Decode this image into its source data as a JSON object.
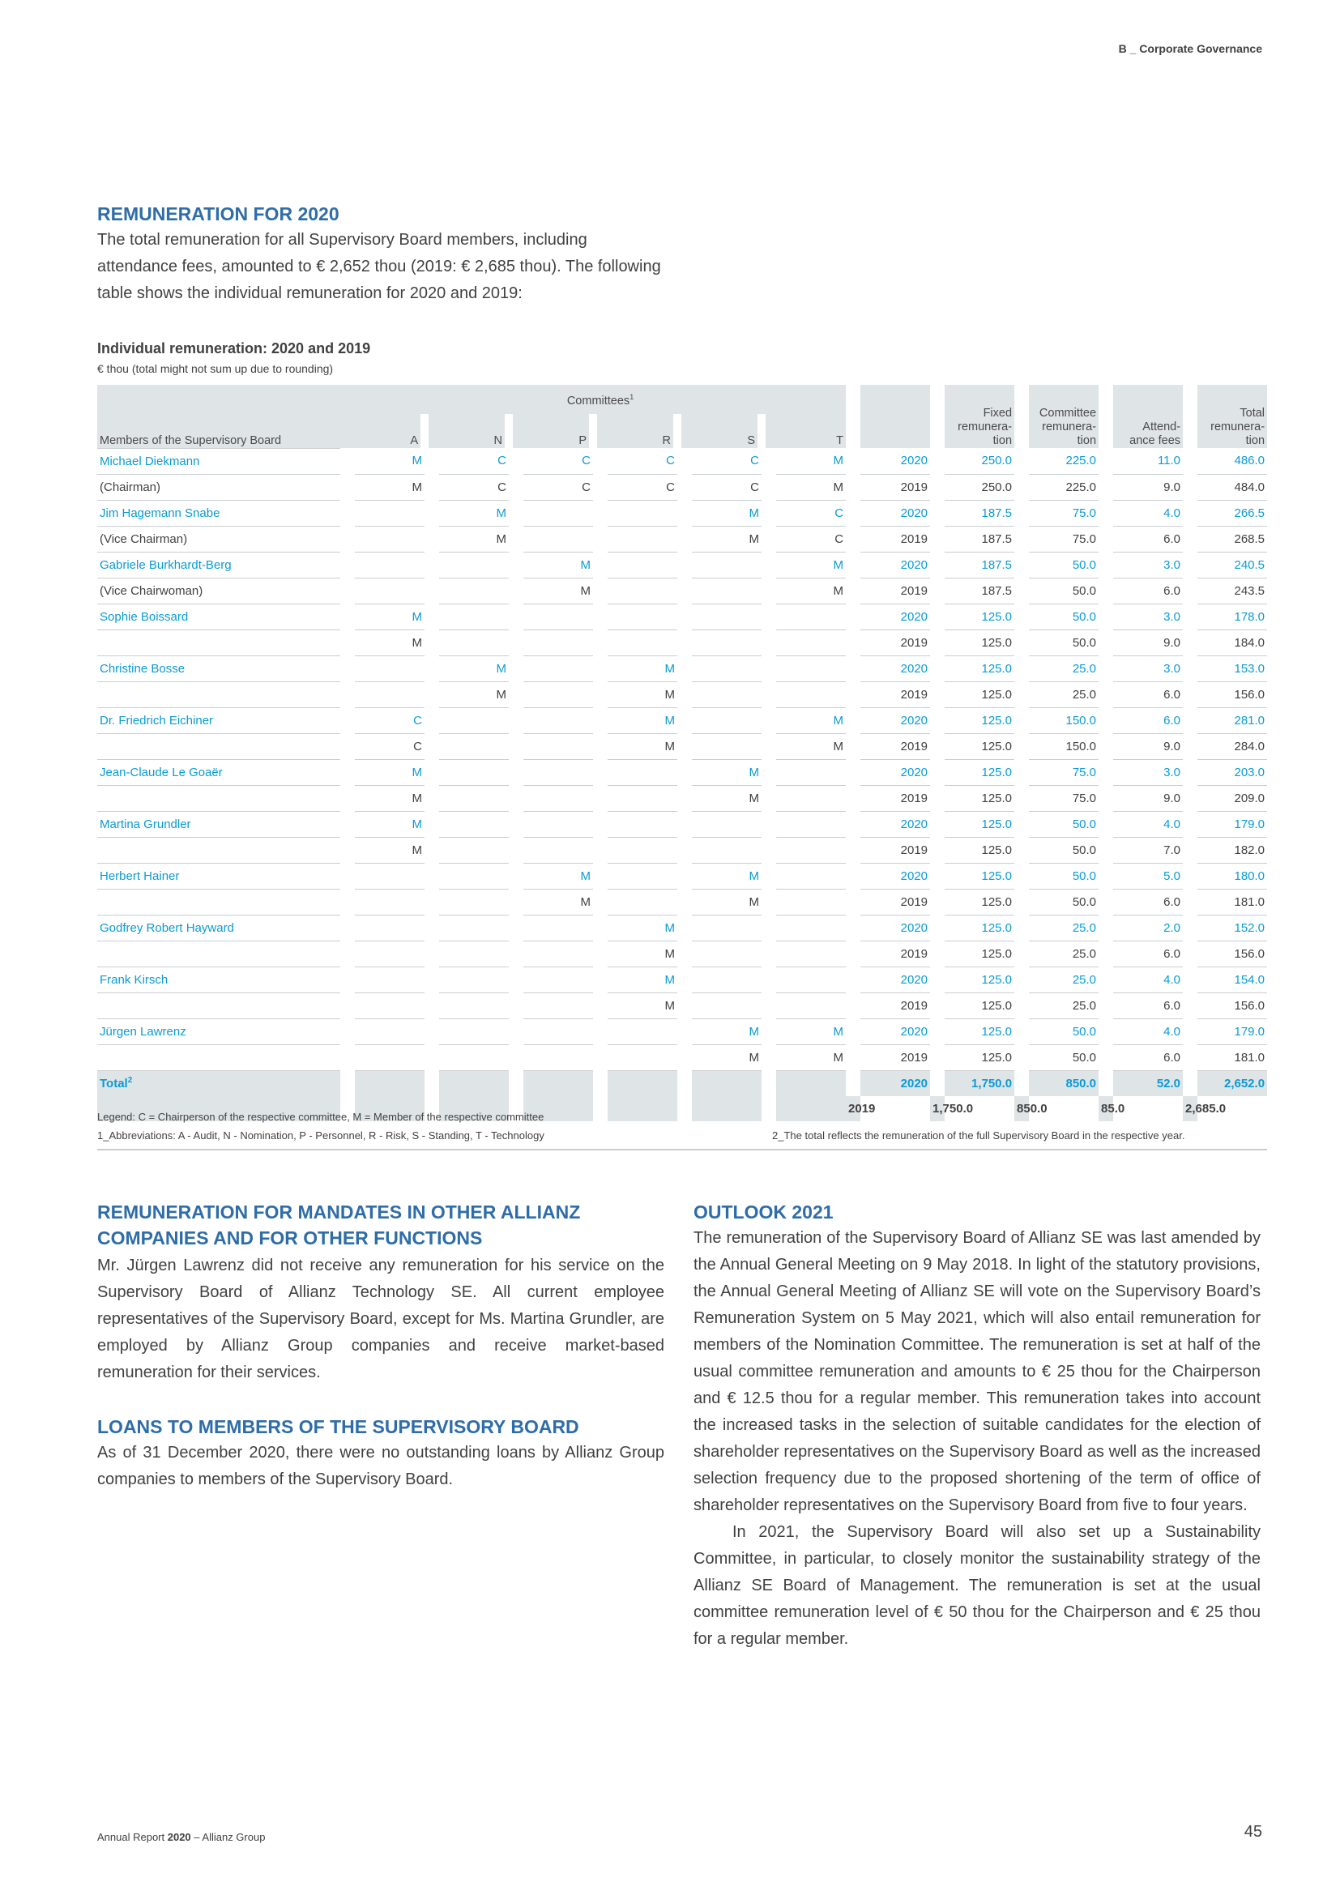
{
  "header": "B _ Corporate Governance",
  "top": {
    "title": "REMUNERATION FOR 2020",
    "para": "The total remuneration for all Supervisory Board members, including attendance fees, amounted to € 2,652 thou (2019: € 2,685 thou). The following table shows the individual remuneration for 2020 and 2019:"
  },
  "table": {
    "title": "Individual remuneration: 2020 and 2019",
    "unit": "€ thou (total might not sum up due to rounding)",
    "head": {
      "committees": "Committees",
      "committees_sup": "1",
      "members": "Members of the Supervisory Board",
      "a": "A",
      "n": "N",
      "p": "P",
      "r": "R",
      "s": "S",
      "t": "T",
      "fixed": "Fixed remunera- tion",
      "committee": "Committee remunera- tion",
      "attend": "Attend- ance fees",
      "total": "Total remunera- tion"
    },
    "rows": [
      {
        "name": "Michael Diekmann",
        "a": "M",
        "n": "C",
        "p": "C",
        "r": "C",
        "s": "C",
        "t": "M",
        "year": "2020",
        "fixed": "250.0",
        "comm": "225.0",
        "att": "11.0",
        "tot": "486.0"
      },
      {
        "name": "(Chairman)",
        "a": "M",
        "n": "C",
        "p": "C",
        "r": "C",
        "s": "C",
        "t": "M",
        "year": "2019",
        "fixed": "250.0",
        "comm": "225.0",
        "att": "9.0",
        "tot": "484.0"
      },
      {
        "name": "Jim Hagemann Snabe",
        "a": "",
        "n": "M",
        "p": "",
        "r": "",
        "s": "M",
        "t": "C",
        "year": "2020",
        "fixed": "187.5",
        "comm": "75.0",
        "att": "4.0",
        "tot": "266.5"
      },
      {
        "name": "(Vice Chairman)",
        "a": "",
        "n": "M",
        "p": "",
        "r": "",
        "s": "M",
        "t": "C",
        "year": "2019",
        "fixed": "187.5",
        "comm": "75.0",
        "att": "6.0",
        "tot": "268.5"
      },
      {
        "name": "Gabriele Burkhardt-Berg",
        "a": "",
        "n": "",
        "p": "M",
        "r": "",
        "s": "",
        "t": "M",
        "year": "2020",
        "fixed": "187.5",
        "comm": "50.0",
        "att": "3.0",
        "tot": "240.5"
      },
      {
        "name": "(Vice Chairwoman)",
        "a": "",
        "n": "",
        "p": "M",
        "r": "",
        "s": "",
        "t": "M",
        "year": "2019",
        "fixed": "187.5",
        "comm": "50.0",
        "att": "6.0",
        "tot": "243.5"
      },
      {
        "name": "Sophie Boissard",
        "a": "M",
        "n": "",
        "p": "",
        "r": "",
        "s": "",
        "t": "",
        "year": "2020",
        "fixed": "125.0",
        "comm": "50.0",
        "att": "3.0",
        "tot": "178.0"
      },
      {
        "name": "",
        "a": "M",
        "n": "",
        "p": "",
        "r": "",
        "s": "",
        "t": "",
        "year": "2019",
        "fixed": "125.0",
        "comm": "50.0",
        "att": "9.0",
        "tot": "184.0"
      },
      {
        "name": "Christine Bosse",
        "a": "",
        "n": "M",
        "p": "",
        "r": "M",
        "s": "",
        "t": "",
        "year": "2020",
        "fixed": "125.0",
        "comm": "25.0",
        "att": "3.0",
        "tot": "153.0"
      },
      {
        "name": "",
        "a": "",
        "n": "M",
        "p": "",
        "r": "M",
        "s": "",
        "t": "",
        "year": "2019",
        "fixed": "125.0",
        "comm": "25.0",
        "att": "6.0",
        "tot": "156.0"
      },
      {
        "name": "Dr. Friedrich Eichiner",
        "a": "C",
        "n": "",
        "p": "",
        "r": "M",
        "s": "",
        "t": "M",
        "year": "2020",
        "fixed": "125.0",
        "comm": "150.0",
        "att": "6.0",
        "tot": "281.0"
      },
      {
        "name": "",
        "a": "C",
        "n": "",
        "p": "",
        "r": "M",
        "s": "",
        "t": "M",
        "year": "2019",
        "fixed": "125.0",
        "comm": "150.0",
        "att": "9.0",
        "tot": "284.0"
      },
      {
        "name": "Jean-Claude Le Goaër",
        "a": "M",
        "n": "",
        "p": "",
        "r": "",
        "s": "M",
        "t": "",
        "year": "2020",
        "fixed": "125.0",
        "comm": "75.0",
        "att": "3.0",
        "tot": "203.0"
      },
      {
        "name": "",
        "a": "M",
        "n": "",
        "p": "",
        "r": "",
        "s": "M",
        "t": "",
        "year": "2019",
        "fixed": "125.0",
        "comm": "75.0",
        "att": "9.0",
        "tot": "209.0"
      },
      {
        "name": "Martina Grundler",
        "a": "M",
        "n": "",
        "p": "",
        "r": "",
        "s": "",
        "t": "",
        "year": "2020",
        "fixed": "125.0",
        "comm": "50.0",
        "att": "4.0",
        "tot": "179.0"
      },
      {
        "name": "",
        "a": "M",
        "n": "",
        "p": "",
        "r": "",
        "s": "",
        "t": "",
        "year": "2019",
        "fixed": "125.0",
        "comm": "50.0",
        "att": "7.0",
        "tot": "182.0"
      },
      {
        "name": "Herbert Hainer",
        "a": "",
        "n": "",
        "p": "M",
        "r": "",
        "s": "M",
        "t": "",
        "year": "2020",
        "fixed": "125.0",
        "comm": "50.0",
        "att": "5.0",
        "tot": "180.0"
      },
      {
        "name": "",
        "a": "",
        "n": "",
        "p": "M",
        "r": "",
        "s": "M",
        "t": "",
        "year": "2019",
        "fixed": "125.0",
        "comm": "50.0",
        "att": "6.0",
        "tot": "181.0"
      },
      {
        "name": "Godfrey Robert Hayward",
        "a": "",
        "n": "",
        "p": "",
        "r": "M",
        "s": "",
        "t": "",
        "year": "2020",
        "fixed": "125.0",
        "comm": "25.0",
        "att": "2.0",
        "tot": "152.0"
      },
      {
        "name": "",
        "a": "",
        "n": "",
        "p": "",
        "r": "M",
        "s": "",
        "t": "",
        "year": "2019",
        "fixed": "125.0",
        "comm": "25.0",
        "att": "6.0",
        "tot": "156.0"
      },
      {
        "name": "Frank Kirsch",
        "a": "",
        "n": "",
        "p": "",
        "r": "M",
        "s": "",
        "t": "",
        "year": "2020",
        "fixed": "125.0",
        "comm": "25.0",
        "att": "4.0",
        "tot": "154.0"
      },
      {
        "name": "",
        "a": "",
        "n": "",
        "p": "",
        "r": "M",
        "s": "",
        "t": "",
        "year": "2019",
        "fixed": "125.0",
        "comm": "25.0",
        "att": "6.0",
        "tot": "156.0"
      },
      {
        "name": "Jürgen Lawrenz",
        "a": "",
        "n": "",
        "p": "",
        "r": "",
        "s": "M",
        "t": "M",
        "year": "2020",
        "fixed": "125.0",
        "comm": "50.0",
        "att": "4.0",
        "tot": "179.0"
      },
      {
        "name": "",
        "a": "",
        "n": "",
        "p": "",
        "r": "",
        "s": "M",
        "t": "M",
        "year": "2019",
        "fixed": "125.0",
        "comm": "50.0",
        "att": "6.0",
        "tot": "181.0"
      }
    ],
    "total": {
      "label": "Total",
      "sup": "2",
      "rows": [
        {
          "year": "2020",
          "fixed": "1,750.0",
          "comm": "850.0",
          "att": "52.0",
          "tot": "2,652.0"
        },
        {
          "year": "2019",
          "fixed": "1,750.0",
          "comm": "850.0",
          "att": "85.0",
          "tot": "2,685.0"
        }
      ]
    },
    "legend": "Legend: C = Chairperson of the respective committee, M = Member of the respective committee",
    "footnote1": "1_Abbreviations: A - Audit, N - Nomination, P - Personnel, R - Risk, S - Standing, T - Technology",
    "footnote2": "2_The total reflects the remuneration of the full Supervisory Board in the respective year."
  },
  "left": {
    "h1": "REMUNERATION FOR MANDATES IN OTHER ALLIANZ COMPANIES AND FOR OTHER FUNCTIONS",
    "p1": "Mr. Jürgen Lawrenz did not receive any remuneration for his service on the Supervisory Board of Allianz Technology SE. All current employee representatives of the Supervisory Board, except for Ms. Martina Grundler, are employed by Allianz Group companies and receive market-based remuneration for their services.",
    "h2": "LOANS TO MEMBERS OF THE SUPERVISORY BOARD",
    "p2": "As of 31 December 2020, there were no outstanding loans by Allianz Group companies to members of the Supervisory Board."
  },
  "right": {
    "h": "OUTLOOK 2021",
    "p1": "The remuneration of the Supervisory Board of Allianz SE was last amended by the Annual General Meeting on 9 May 2018. In light of the statutory provisions, the Annual General Meeting of Allianz SE will vote on the Supervisory Board’s Remuneration System on 5 May 2021, which will also entail remuneration for members of the Nomination Committee. The remuneration is set at half of the usual committee remuneration and amounts to € 25 thou for the Chairper­son and € 12.5 thou for a regular member. This remuneration takes into account the increased tasks in the selection of suitable candi­dates for the election of shareholder representatives on the Supervi­sory Board as well as the increased selection frequency due to the proposed shortening of the term of office of shareholder representa­tives on the Supervisory Board from five to four years.",
    "p2": "In 2021, the Supervisory Board will also set up a Sustainability Committee, in particular, to closely monitor the sustainability strategy of the Allianz SE Board of Management. The remuneration is set at the usual committee remuneration level of € 50 thou for the Chairperson and € 25 thou for a regular member."
  },
  "footer": {
    "text_pre": "Annual Report ",
    "year": "2020",
    "text_post": " – Allianz Group",
    "page": "45"
  }
}
